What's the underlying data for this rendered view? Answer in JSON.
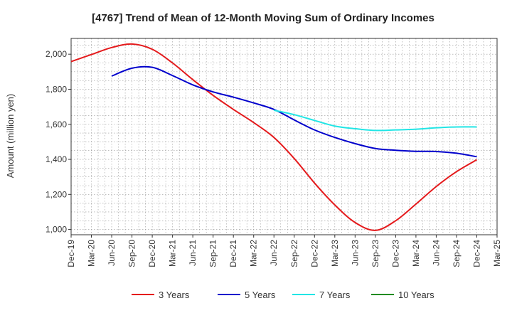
{
  "chart_data": {
    "type": "line",
    "title": "[4767]  Trend of Mean of 12-Month Moving Sum of Ordinary Incomes",
    "xlabel": "",
    "ylabel": "Amount (million yen)",
    "ylim": [
      970,
      2090
    ],
    "yticks": [
      1000,
      1200,
      1400,
      1600,
      1800,
      2000
    ],
    "ytick_labels": [
      "1,000",
      "1,200",
      "1,400",
      "1,600",
      "1,800",
      "2,000"
    ],
    "categories": [
      "Dec-19",
      "Mar-20",
      "Jun-20",
      "Sep-20",
      "Dec-20",
      "Mar-21",
      "Jun-21",
      "Sep-21",
      "Dec-21",
      "Mar-22",
      "Jun-22",
      "Sep-22",
      "Dec-22",
      "Mar-23",
      "Jun-23",
      "Sep-23",
      "Dec-23",
      "Mar-24",
      "Jun-24",
      "Sep-24",
      "Dec-24",
      "Mar-25"
    ],
    "grid": true,
    "legend_position": "bottom",
    "series": [
      {
        "name": "3 Years",
        "color": "#e41a1c",
        "values": [
          1958,
          1998,
          2038,
          2058,
          2028,
          1950,
          1855,
          1765,
          1685,
          1610,
          1525,
          1405,
          1265,
          1140,
          1040,
          995,
          1050,
          1145,
          1245,
          1330,
          1398,
          null
        ]
      },
      {
        "name": "5 Years",
        "color": "#0000cc",
        "values": [
          null,
          null,
          1875,
          1920,
          1925,
          1878,
          1825,
          1785,
          1755,
          1722,
          1685,
          1625,
          1568,
          1525,
          1490,
          1462,
          1452,
          1446,
          1445,
          1435,
          1415,
          null
        ]
      },
      {
        "name": "7 Years",
        "color": "#22e5e5",
        "values": [
          null,
          null,
          null,
          null,
          null,
          null,
          null,
          null,
          null,
          null,
          1680,
          1655,
          1622,
          1590,
          1575,
          1565,
          1568,
          1572,
          1580,
          1585,
          1585,
          null
        ]
      },
      {
        "name": "10 Years",
        "color": "#228b22",
        "values": [
          null,
          null,
          null,
          null,
          null,
          null,
          null,
          null,
          null,
          null,
          null,
          null,
          null,
          null,
          null,
          null,
          null,
          null,
          null,
          null,
          null,
          null
        ]
      }
    ]
  }
}
